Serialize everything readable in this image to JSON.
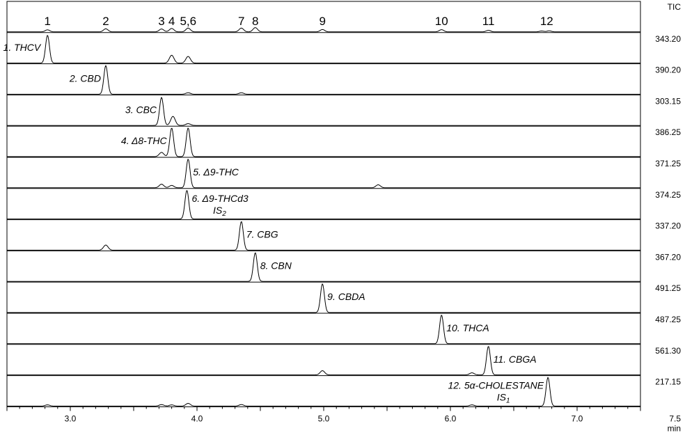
{
  "chart_data": {
    "type": "line",
    "xlabel": "min",
    "xlim": [
      2.5,
      7.5
    ],
    "xticks": [
      "3.0",
      "4.0",
      "5.0",
      "6.0",
      "7.0",
      "7.5"
    ],
    "panels": [
      {
        "id": "tic",
        "right_label": "TIC",
        "peak_numbers": [
          {
            "text": "1",
            "x": 2.82
          },
          {
            "text": "2",
            "x": 3.28
          },
          {
            "text": "3",
            "x": 3.72
          },
          {
            "text": "4",
            "x": 3.8
          },
          {
            "text": "5,6",
            "x": 3.93
          },
          {
            "text": "7",
            "x": 4.35
          },
          {
            "text": "8",
            "x": 4.46
          },
          {
            "text": "9",
            "x": 4.99
          },
          {
            "text": "10",
            "x": 5.93
          },
          {
            "text": "11",
            "x": 6.3
          },
          {
            "text": "12",
            "x": 6.76
          }
        ],
        "peaks": [
          {
            "x": 2.82,
            "h": 0.12
          },
          {
            "x": 3.28,
            "h": 0.18
          },
          {
            "x": 3.72,
            "h": 0.17
          },
          {
            "x": 3.8,
            "h": 0.2
          },
          {
            "x": 3.93,
            "h": 0.22
          },
          {
            "x": 4.35,
            "h": 0.22
          },
          {
            "x": 4.46,
            "h": 0.25
          },
          {
            "x": 4.99,
            "h": 0.14
          },
          {
            "x": 5.93,
            "h": 0.13
          },
          {
            "x": 6.3,
            "h": 0.09
          },
          {
            "x": 6.72,
            "h": 0.05
          },
          {
            "x": 6.78,
            "h": 0.06
          }
        ]
      },
      {
        "id": "thcv",
        "mz": "343.20",
        "label": "1. THCV",
        "label_sub": "",
        "peaks": [
          {
            "x": 2.82,
            "h": 0.92
          },
          {
            "x": 3.8,
            "h": 0.26
          },
          {
            "x": 3.93,
            "h": 0.22
          }
        ]
      },
      {
        "id": "cbd",
        "mz": "390.20",
        "label": "2. CBD",
        "label_sub": "",
        "peaks": [
          {
            "x": 3.28,
            "h": 0.95
          },
          {
            "x": 3.93,
            "h": 0.05
          },
          {
            "x": 4.35,
            "h": 0.05
          }
        ]
      },
      {
        "id": "cbc",
        "mz": "303.15",
        "label": "3. CBC",
        "label_sub": "",
        "peaks": [
          {
            "x": 3.72,
            "h": 0.93
          },
          {
            "x": 3.81,
            "h": 0.3
          },
          {
            "x": 3.93,
            "h": 0.06
          }
        ]
      },
      {
        "id": "d8thc",
        "mz": "386.25",
        "label": "4. Δ8-THC",
        "label_sub": "",
        "peaks": [
          {
            "x": 3.72,
            "h": 0.14
          },
          {
            "x": 3.8,
            "h": 0.95
          },
          {
            "x": 3.93,
            "h": 0.95
          }
        ]
      },
      {
        "id": "d9thc",
        "mz": "371.25",
        "label": "5. Δ9-THC",
        "label_sub": "",
        "peaks": [
          {
            "x": 3.72,
            "h": 0.12
          },
          {
            "x": 3.8,
            "h": 0.08
          },
          {
            "x": 3.93,
            "h": 0.95
          },
          {
            "x": 5.43,
            "h": 0.1
          }
        ]
      },
      {
        "id": "d9thcd3",
        "mz": "374.25",
        "label": "6. Δ9-THCd3",
        "label_sub": "IS2",
        "peaks": [
          {
            "x": 3.92,
            "h": 0.95
          }
        ]
      },
      {
        "id": "cbg",
        "mz": "337.20",
        "label": "7. CBG",
        "label_sub": "",
        "peaks": [
          {
            "x": 3.28,
            "h": 0.17
          },
          {
            "x": 4.35,
            "h": 0.95
          }
        ]
      },
      {
        "id": "cbn",
        "mz": "367.20",
        "label": "8. CBN",
        "label_sub": "",
        "peaks": [
          {
            "x": 4.46,
            "h": 0.95
          }
        ]
      },
      {
        "id": "cbda",
        "mz": "491.25",
        "label": "9. CBDA",
        "label_sub": "",
        "peaks": [
          {
            "x": 4.99,
            "h": 0.95
          }
        ]
      },
      {
        "id": "thca",
        "mz": "487.25",
        "label": "10. THCA",
        "label_sub": "",
        "peaks": [
          {
            "x": 5.93,
            "h": 0.95
          }
        ]
      },
      {
        "id": "cbga",
        "mz": "561.30",
        "label": "11. CBGA",
        "label_sub": "",
        "peaks": [
          {
            "x": 4.99,
            "h": 0.14
          },
          {
            "x": 6.17,
            "h": 0.07
          },
          {
            "x": 6.3,
            "h": 0.95
          }
        ]
      },
      {
        "id": "cholestane",
        "mz": "217.15",
        "label": "12. 5α-CHOLESTANE",
        "label_sub": "IS1",
        "peaks": [
          {
            "x": 2.82,
            "h": 0.04
          },
          {
            "x": 3.72,
            "h": 0.05
          },
          {
            "x": 3.8,
            "h": 0.04
          },
          {
            "x": 3.93,
            "h": 0.09
          },
          {
            "x": 4.35,
            "h": 0.05
          },
          {
            "x": 6.17,
            "h": 0.04
          },
          {
            "x": 6.77,
            "h": 0.95
          }
        ]
      }
    ]
  }
}
